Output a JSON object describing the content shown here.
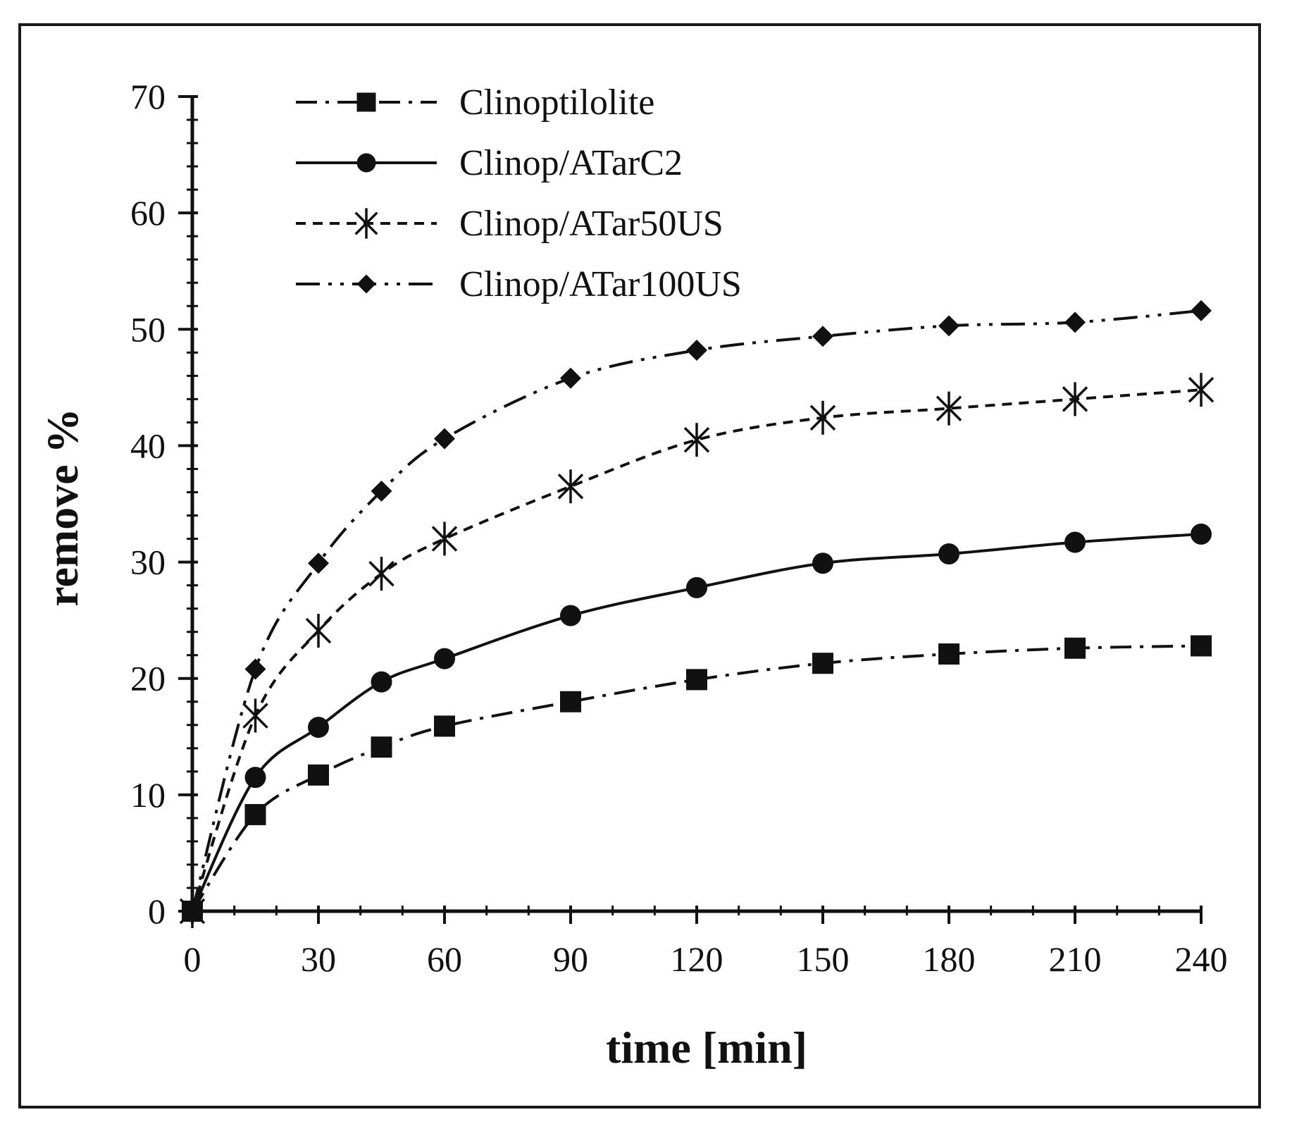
{
  "chart_data": {
    "type": "line",
    "title": "",
    "xlabel": "time [min]",
    "ylabel": "remove %",
    "xlim": [
      0,
      240
    ],
    "ylim": [
      0,
      70
    ],
    "x_ticks": [
      0,
      30,
      60,
      90,
      120,
      150,
      180,
      210,
      240
    ],
    "y_ticks": [
      0,
      10,
      20,
      30,
      40,
      50,
      60,
      70
    ],
    "grid": false,
    "legend_position": "top-left",
    "x": [
      0,
      15,
      30,
      45,
      60,
      90,
      120,
      150,
      180,
      210,
      240
    ],
    "series": [
      {
        "name": "Clinoptilolite",
        "marker": "square",
        "line_style": "dash-dot",
        "values": [
          0,
          8.3,
          11.7,
          14.1,
          15.9,
          18.0,
          19.9,
          21.3,
          22.1,
          22.6,
          22.8
        ]
      },
      {
        "name": "Clinop/ATarC2",
        "marker": "circle",
        "line_style": "solid",
        "values": [
          0,
          11.5,
          15.8,
          19.7,
          21.7,
          25.4,
          27.8,
          29.9,
          30.7,
          31.7,
          32.4
        ]
      },
      {
        "name": "Clinop/ATar50US",
        "marker": "asterisk",
        "line_style": "dashed",
        "values": [
          0,
          16.8,
          24.1,
          29.0,
          32.0,
          36.5,
          40.5,
          42.4,
          43.2,
          44.0,
          44.8
        ]
      },
      {
        "name": "Clinop/ATar100US",
        "marker": "diamond",
        "line_style": "long-dash-dot-dot",
        "values": [
          0,
          20.8,
          29.9,
          36.1,
          40.6,
          45.8,
          48.2,
          49.4,
          50.3,
          50.6,
          51.6
        ]
      }
    ]
  }
}
